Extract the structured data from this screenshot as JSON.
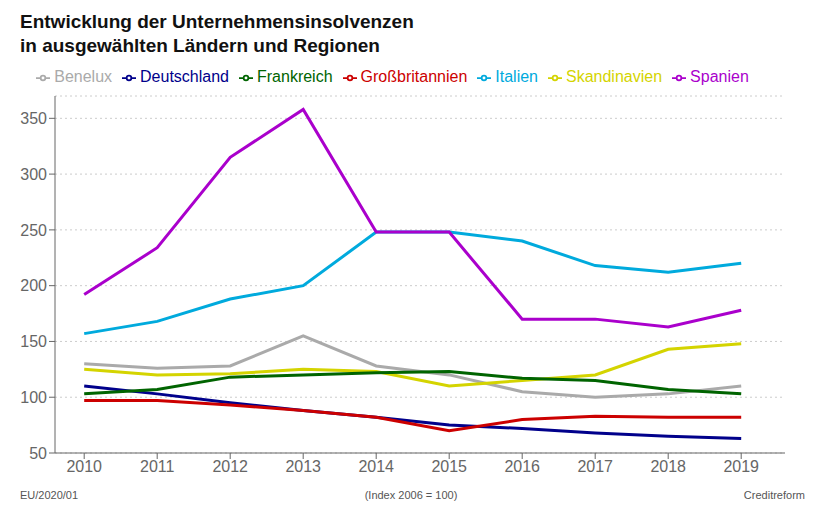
{
  "chart_data": {
    "type": "line",
    "title": "Entwicklung der Unternehmensinsolvenzen",
    "subtitle": "in ausgewählten Ländern und Regionen",
    "x": [
      2010,
      2011,
      2012,
      2013,
      2014,
      2015,
      2016,
      2017,
      2018,
      2019
    ],
    "series": [
      {
        "name": "Benelux",
        "color": "#aaaaaa",
        "values": [
          130,
          126,
          128,
          155,
          128,
          120,
          105,
          100,
          103,
          110
        ]
      },
      {
        "name": "Skandinavien",
        "color": "#d4d400",
        "values": [
          125,
          120,
          121,
          125,
          123,
          110,
          115,
          120,
          143,
          148
        ]
      },
      {
        "name": "Deutschland",
        "color": "#00008b",
        "values": [
          110,
          103,
          95,
          88,
          82,
          75,
          72,
          68,
          65,
          63
        ]
      },
      {
        "name": "Frankreich",
        "color": "#006400",
        "values": [
          103,
          107,
          118,
          120,
          122,
          123,
          117,
          115,
          107,
          103
        ]
      },
      {
        "name": "Großbritannien",
        "color": "#cc0000",
        "values": [
          97,
          97,
          93,
          88,
          82,
          70,
          80,
          83,
          82,
          82
        ]
      },
      {
        "name": "Italien",
        "color": "#00aadd",
        "values": [
          157,
          168,
          188,
          200,
          248,
          248,
          240,
          218,
          212,
          220
        ]
      },
      {
        "name": "Spanien",
        "color": "#aa00cc",
        "values": [
          192,
          234,
          315,
          358,
          248,
          248,
          170,
          170,
          163,
          178
        ]
      }
    ],
    "xlim": [
      2009.6,
      2019.6
    ],
    "xticks": [
      2010,
      2011,
      2012,
      2013,
      2014,
      2015,
      2016,
      2017,
      2018,
      2019
    ],
    "ylim": [
      50,
      370
    ],
    "yticks": [
      50,
      100,
      150,
      200,
      250,
      300,
      350
    ],
    "grid": true,
    "legend": "top",
    "annotations": [
      "EU/2020/01",
      "(Index 2006 = 100)",
      "Creditreform"
    ]
  }
}
